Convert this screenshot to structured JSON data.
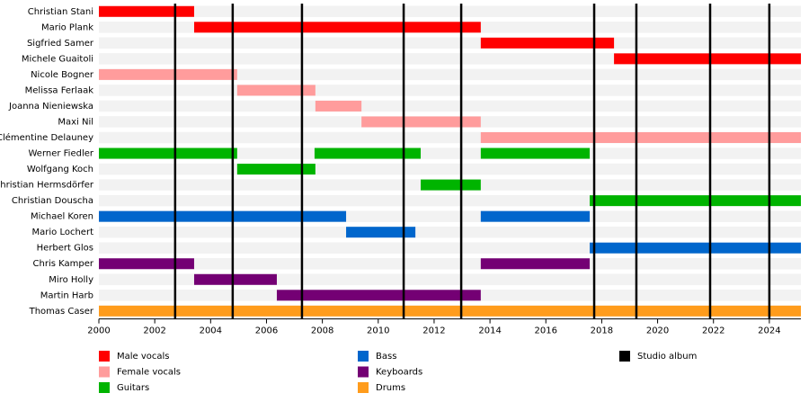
{
  "chart_data": {
    "type": "timeline",
    "xlim": [
      2000,
      2025.13
    ],
    "xticks": [
      2000,
      2002,
      2004,
      2006,
      2008,
      2010,
      2012,
      2014,
      2016,
      2018,
      2020,
      2022,
      2024
    ],
    "members": [
      {
        "name": "Christian Stani",
        "bars": [
          {
            "start": 2000,
            "end": 2003.41,
            "color": "#ff0000"
          }
        ]
      },
      {
        "name": "Mario Plank",
        "bars": [
          {
            "start": 2003.41,
            "end": 2013.67,
            "color": "#ff0000"
          }
        ]
      },
      {
        "name": "Sigfried Samer",
        "bars": [
          {
            "start": 2013.67,
            "end": 2018.44,
            "color": "#ff0000"
          }
        ]
      },
      {
        "name": "Michele Guaitoli",
        "bars": [
          {
            "start": 2018.44,
            "end": 2025.13,
            "color": "#ff0000"
          }
        ]
      },
      {
        "name": "Nicole Bogner",
        "bars": [
          {
            "start": 2000,
            "end": 2004.95,
            "color": "#ff9c9c"
          }
        ]
      },
      {
        "name": "Melissa Ferlaak",
        "bars": [
          {
            "start": 2004.95,
            "end": 2007.75,
            "color": "#ff9c9c"
          }
        ]
      },
      {
        "name": "Joanna Nieniewska",
        "bars": [
          {
            "start": 2007.75,
            "end": 2009.4,
            "color": "#ff9c9c"
          }
        ]
      },
      {
        "name": "Maxi Nil",
        "bars": [
          {
            "start": 2009.4,
            "end": 2013.67,
            "color": "#ff9c9c"
          }
        ]
      },
      {
        "name": "Clémentine Delauney",
        "bars": [
          {
            "start": 2013.67,
            "end": 2025.13,
            "color": "#ff9c9c"
          }
        ]
      },
      {
        "name": "Werner Fiedler",
        "bars": [
          {
            "start": 2000,
            "end": 2004.95,
            "color": "#00b400"
          },
          {
            "start": 2007.72,
            "end": 2011.52,
            "color": "#00b400"
          },
          {
            "start": 2013.67,
            "end": 2017.57,
            "color": "#00b400"
          }
        ]
      },
      {
        "name": "Wolfgang Koch",
        "bars": [
          {
            "start": 2004.95,
            "end": 2007.75,
            "color": "#00b400"
          }
        ]
      },
      {
        "name": "Christian Hermsdörfer",
        "bars": [
          {
            "start": 2011.52,
            "end": 2013.67,
            "color": "#00b400"
          }
        ]
      },
      {
        "name": "Christian Douscha",
        "bars": [
          {
            "start": 2017.57,
            "end": 2025.13,
            "color": "#00b400"
          }
        ]
      },
      {
        "name": "Michael Koren",
        "bars": [
          {
            "start": 2000,
            "end": 2008.85,
            "color": "#0066cc"
          },
          {
            "start": 2013.67,
            "end": 2017.57,
            "color": "#0066cc"
          }
        ]
      },
      {
        "name": "Mario Lochert",
        "bars": [
          {
            "start": 2008.85,
            "end": 2011.33,
            "color": "#0066cc"
          }
        ]
      },
      {
        "name": "Herbert Glos",
        "bars": [
          {
            "start": 2017.57,
            "end": 2025.13,
            "color": "#0066cc"
          }
        ]
      },
      {
        "name": "Chris Kamper",
        "bars": [
          {
            "start": 2000,
            "end": 2003.41,
            "color": "#740074"
          },
          {
            "start": 2013.67,
            "end": 2017.57,
            "color": "#740074"
          }
        ]
      },
      {
        "name": "Miro Holly",
        "bars": [
          {
            "start": 2003.41,
            "end": 2006.37,
            "color": "#740074"
          }
        ]
      },
      {
        "name": "Martin Harb",
        "bars": [
          {
            "start": 2006.37,
            "end": 2013.67,
            "color": "#740074"
          }
        ]
      },
      {
        "name": "Thomas Caser",
        "bars": [
          {
            "start": 2000,
            "end": 2025.13,
            "color": "#ff9c1c"
          }
        ]
      }
    ],
    "studio_albums": {
      "name": "Studio album",
      "color": "#000000",
      "values": [
        2002.73,
        2004.79,
        2007.27,
        2010.91,
        2012.97,
        2017.73,
        2019.24,
        2021.88,
        2024.0
      ]
    },
    "legend": [
      {
        "name": "Male vocals",
        "color": "#ff0000"
      },
      {
        "name": "Female vocals",
        "color": "#ff9c9c"
      },
      {
        "name": "Guitars",
        "color": "#00b400"
      },
      {
        "name": "Bass",
        "color": "#0066cc"
      },
      {
        "name": "Keyboards",
        "color": "#740074"
      },
      {
        "name": "Drums",
        "color": "#ff9c1c"
      }
    ]
  }
}
